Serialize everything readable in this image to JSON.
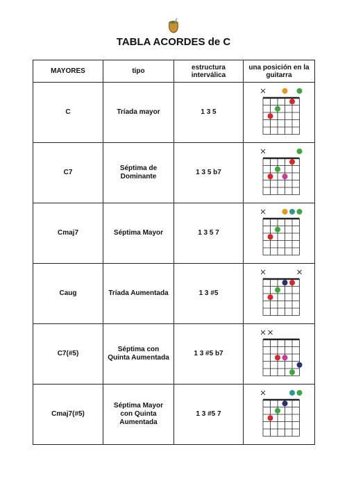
{
  "header": {
    "title": "TABLA ACORDES de C"
  },
  "table": {
    "columns": [
      "MAYORES",
      "tipo",
      "estructura interválica",
      "una posición en la guitarra"
    ],
    "rows": [
      [
        "C",
        "Tríada mayor",
        "1 3 5"
      ],
      [
        "C7",
        "Séptima de Dominante",
        "1 3 5 b7"
      ],
      [
        "Cmaj7",
        "Séptima Mayor",
        "1 3 5 7"
      ],
      [
        "Caug",
        "Tríada Aumentada",
        "1 3 #5"
      ],
      [
        "C7(#5)",
        "Séptima con Quinta Aumentada",
        "1 3 #5 b7"
      ],
      [
        "Cmaj7(#5)",
        "Séptima Mayor con Quinta Aumentada",
        "1 3 #5 7"
      ]
    ]
  }
}
